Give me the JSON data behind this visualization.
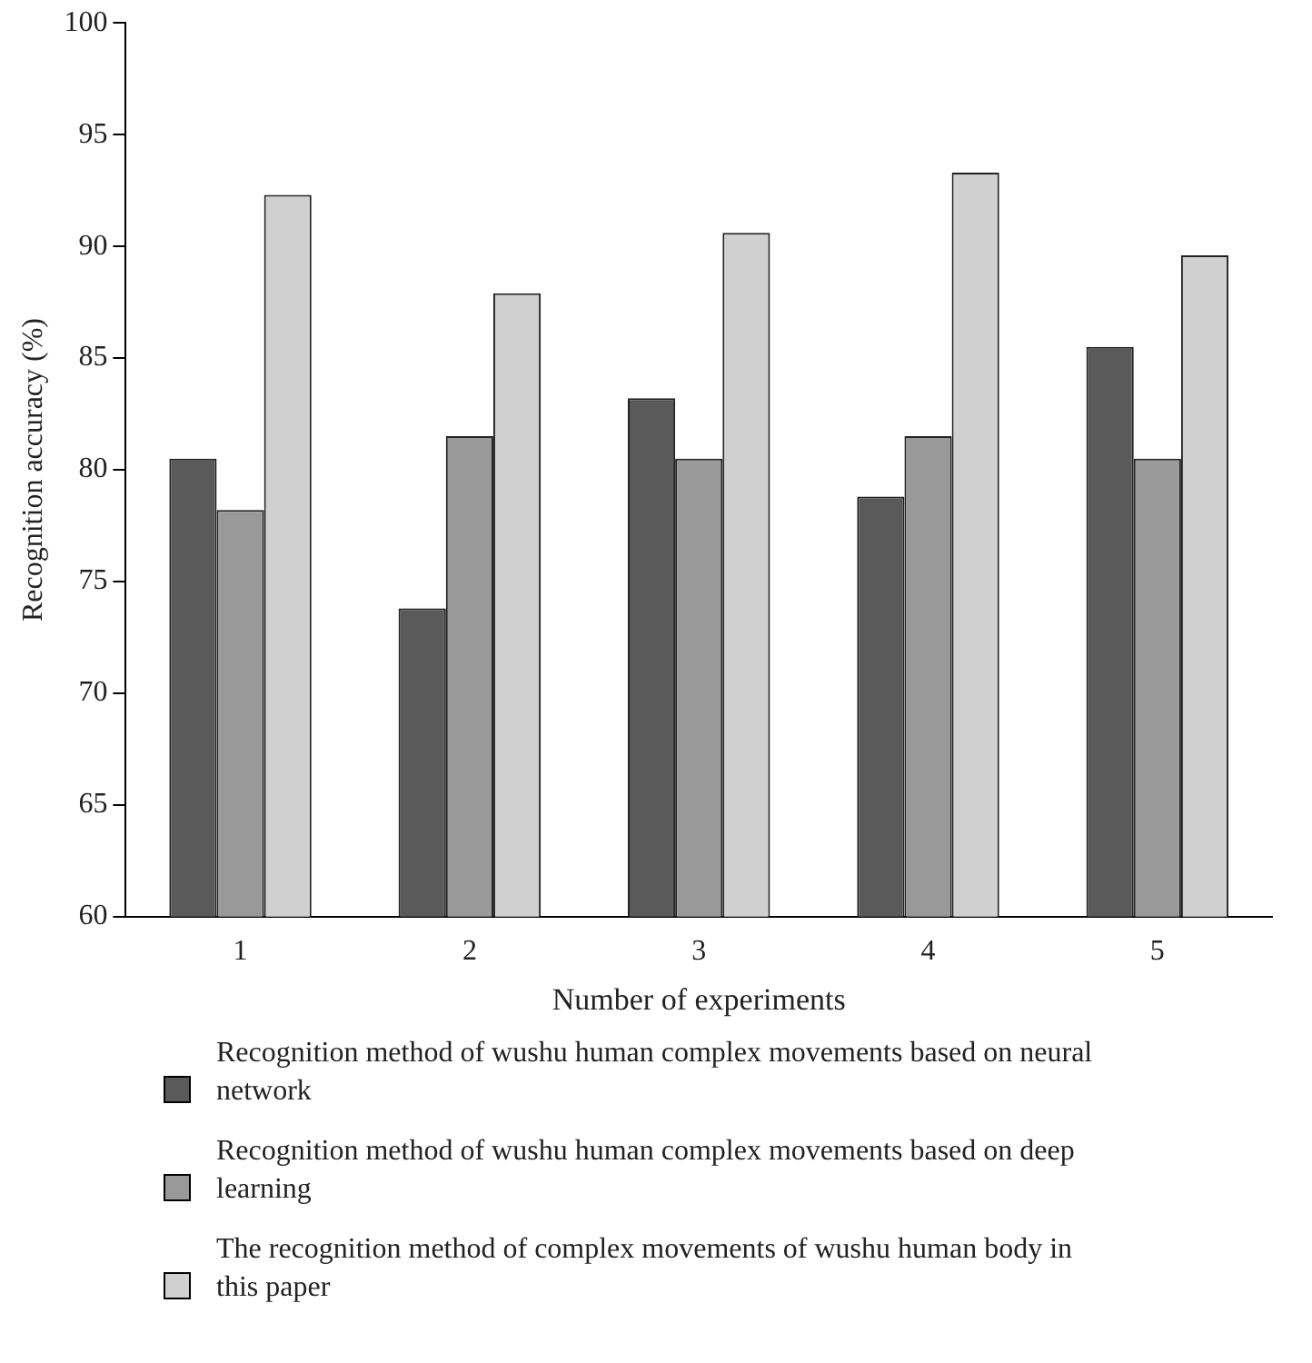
{
  "chart_data": {
    "type": "bar",
    "xlabel": "Number of experiments",
    "ylabel": "Recognition accuracy (%)",
    "categories": [
      "1",
      "2",
      "3",
      "4",
      "5"
    ],
    "series": [
      {
        "name": "Recognition method of wushu human complex movements based on neural network",
        "color": "#5a5a5a",
        "values": [
          80.5,
          73.8,
          83.2,
          78.8,
          85.5
        ]
      },
      {
        "name": "Recognition method of wushu human complex movements based on deep learning",
        "color": "#999999",
        "values": [
          78.2,
          81.5,
          80.5,
          81.5,
          80.5
        ]
      },
      {
        "name": "The recognition method of complex movements of wushu human body in this paper",
        "color": "#d0d0d0",
        "values": [
          92.3,
          87.9,
          90.6,
          93.3,
          89.6
        ]
      }
    ],
    "ylim": [
      60,
      100
    ],
    "yticks": [
      60,
      65,
      70,
      75,
      80,
      85,
      90,
      95,
      100
    ],
    "grid": false,
    "legend": "bottom"
  }
}
